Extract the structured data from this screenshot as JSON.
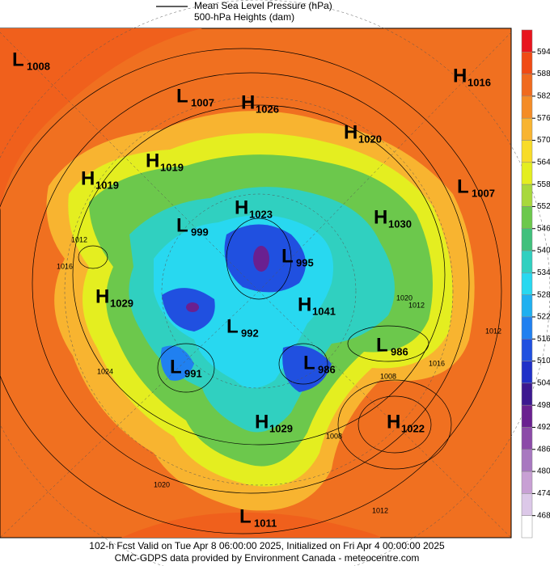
{
  "legend": {
    "lines": [
      "Mean Sea Level Pressure (hPa)",
      "500-hPa Heights (dam)"
    ]
  },
  "pressure_centers": [
    {
      "type": "L",
      "value": 1008
    },
    {
      "type": "L",
      "value": 1007
    },
    {
      "type": "H",
      "value": 1026
    },
    {
      "type": "H",
      "value": 1016
    },
    {
      "type": "H",
      "value": 1020
    },
    {
      "type": "H",
      "value": 1019
    },
    {
      "type": "H",
      "value": 1019
    },
    {
      "type": "L",
      "value": 1007
    },
    {
      "type": "H",
      "value": 1023
    },
    {
      "type": "H",
      "value": 1030
    },
    {
      "type": "L",
      "value": 999
    },
    {
      "type": "L",
      "value": 995
    },
    {
      "type": "H",
      "value": 1029
    },
    {
      "type": "H",
      "value": 1041
    },
    {
      "type": "L",
      "value": 992
    },
    {
      "type": "L",
      "value": 986
    },
    {
      "type": "L",
      "value": 986
    },
    {
      "type": "L",
      "value": 991
    },
    {
      "type": "H",
      "value": 1029
    },
    {
      "type": "H",
      "value": 1022
    },
    {
      "type": "L",
      "value": 1011
    }
  ],
  "isobar_labels": [
    1012,
    1016,
    1024,
    1020,
    1008,
    1016,
    1012,
    1012,
    1020,
    1008,
    1012
  ],
  "colorbar": {
    "ticks": [
      594,
      588,
      582,
      576,
      570,
      564,
      558,
      552,
      546,
      540,
      534,
      528,
      522,
      516,
      510,
      504,
      498,
      492,
      486,
      480,
      474,
      468
    ],
    "colors": [
      "#e8141e",
      "#f04a14",
      "#f06a1e",
      "#f48c26",
      "#f8b430",
      "#f8dc28",
      "#e4ee20",
      "#a8d83c",
      "#6cc84c",
      "#40c07c",
      "#30d0c0",
      "#28d8f0",
      "#20b0f0",
      "#2080f0",
      "#2050e0",
      "#2030c8",
      "#3c1890",
      "#6a2090",
      "#8c4aa8",
      "#a878c0",
      "#c8a0d4",
      "#dcc8e8",
      "#ffffff"
    ]
  },
  "footer": [
    "102-h Fcst Valid on Tue Apr  8 06:00:00 2025, Initialized on Fri Apr  4 00:00:00 2025",
    "CMC-GDPS data provided by Environment Canada - meteocentre.com"
  ]
}
